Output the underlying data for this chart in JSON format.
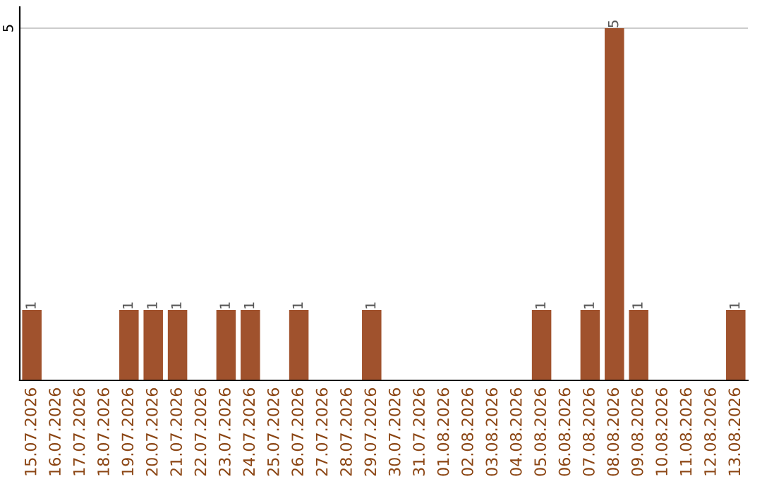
{
  "chart_data": {
    "type": "bar",
    "categories": [
      "15.07.2026",
      "16.07.2026",
      "17.07.2026",
      "18.07.2026",
      "19.07.2026",
      "20.07.2026",
      "21.07.2026",
      "22.07.2026",
      "23.07.2026",
      "24.07.2026",
      "25.07.2026",
      "26.07.2026",
      "27.07.2026",
      "28.07.2026",
      "29.07.2026",
      "30.07.2026",
      "31.07.2026",
      "01.08.2026",
      "02.08.2026",
      "03.08.2026",
      "04.08.2026",
      "05.08.2026",
      "06.08.2026",
      "07.08.2026",
      "08.08.2026",
      "09.08.2026",
      "10.08.2026",
      "11.08.2026",
      "12.08.2026",
      "13.08.2026"
    ],
    "values": [
      1,
      0,
      0,
      0,
      1,
      1,
      1,
      0,
      1,
      1,
      0,
      1,
      0,
      0,
      1,
      0,
      0,
      0,
      0,
      0,
      0,
      1,
      0,
      1,
      5,
      1,
      0,
      0,
      0,
      1
    ],
    "color": "#a0522d",
    "value_labels": [
      "1",
      null,
      null,
      null,
      "1",
      "1",
      "1",
      null,
      "1",
      "1",
      null,
      "1",
      null,
      null,
      "1",
      null,
      null,
      null,
      null,
      null,
      null,
      "1",
      null,
      "1",
      "5",
      "1",
      null,
      null,
      null,
      "1"
    ],
    "ylim": [
      0,
      5.3
    ],
    "yticks": [
      5
    ],
    "grid": "y"
  }
}
